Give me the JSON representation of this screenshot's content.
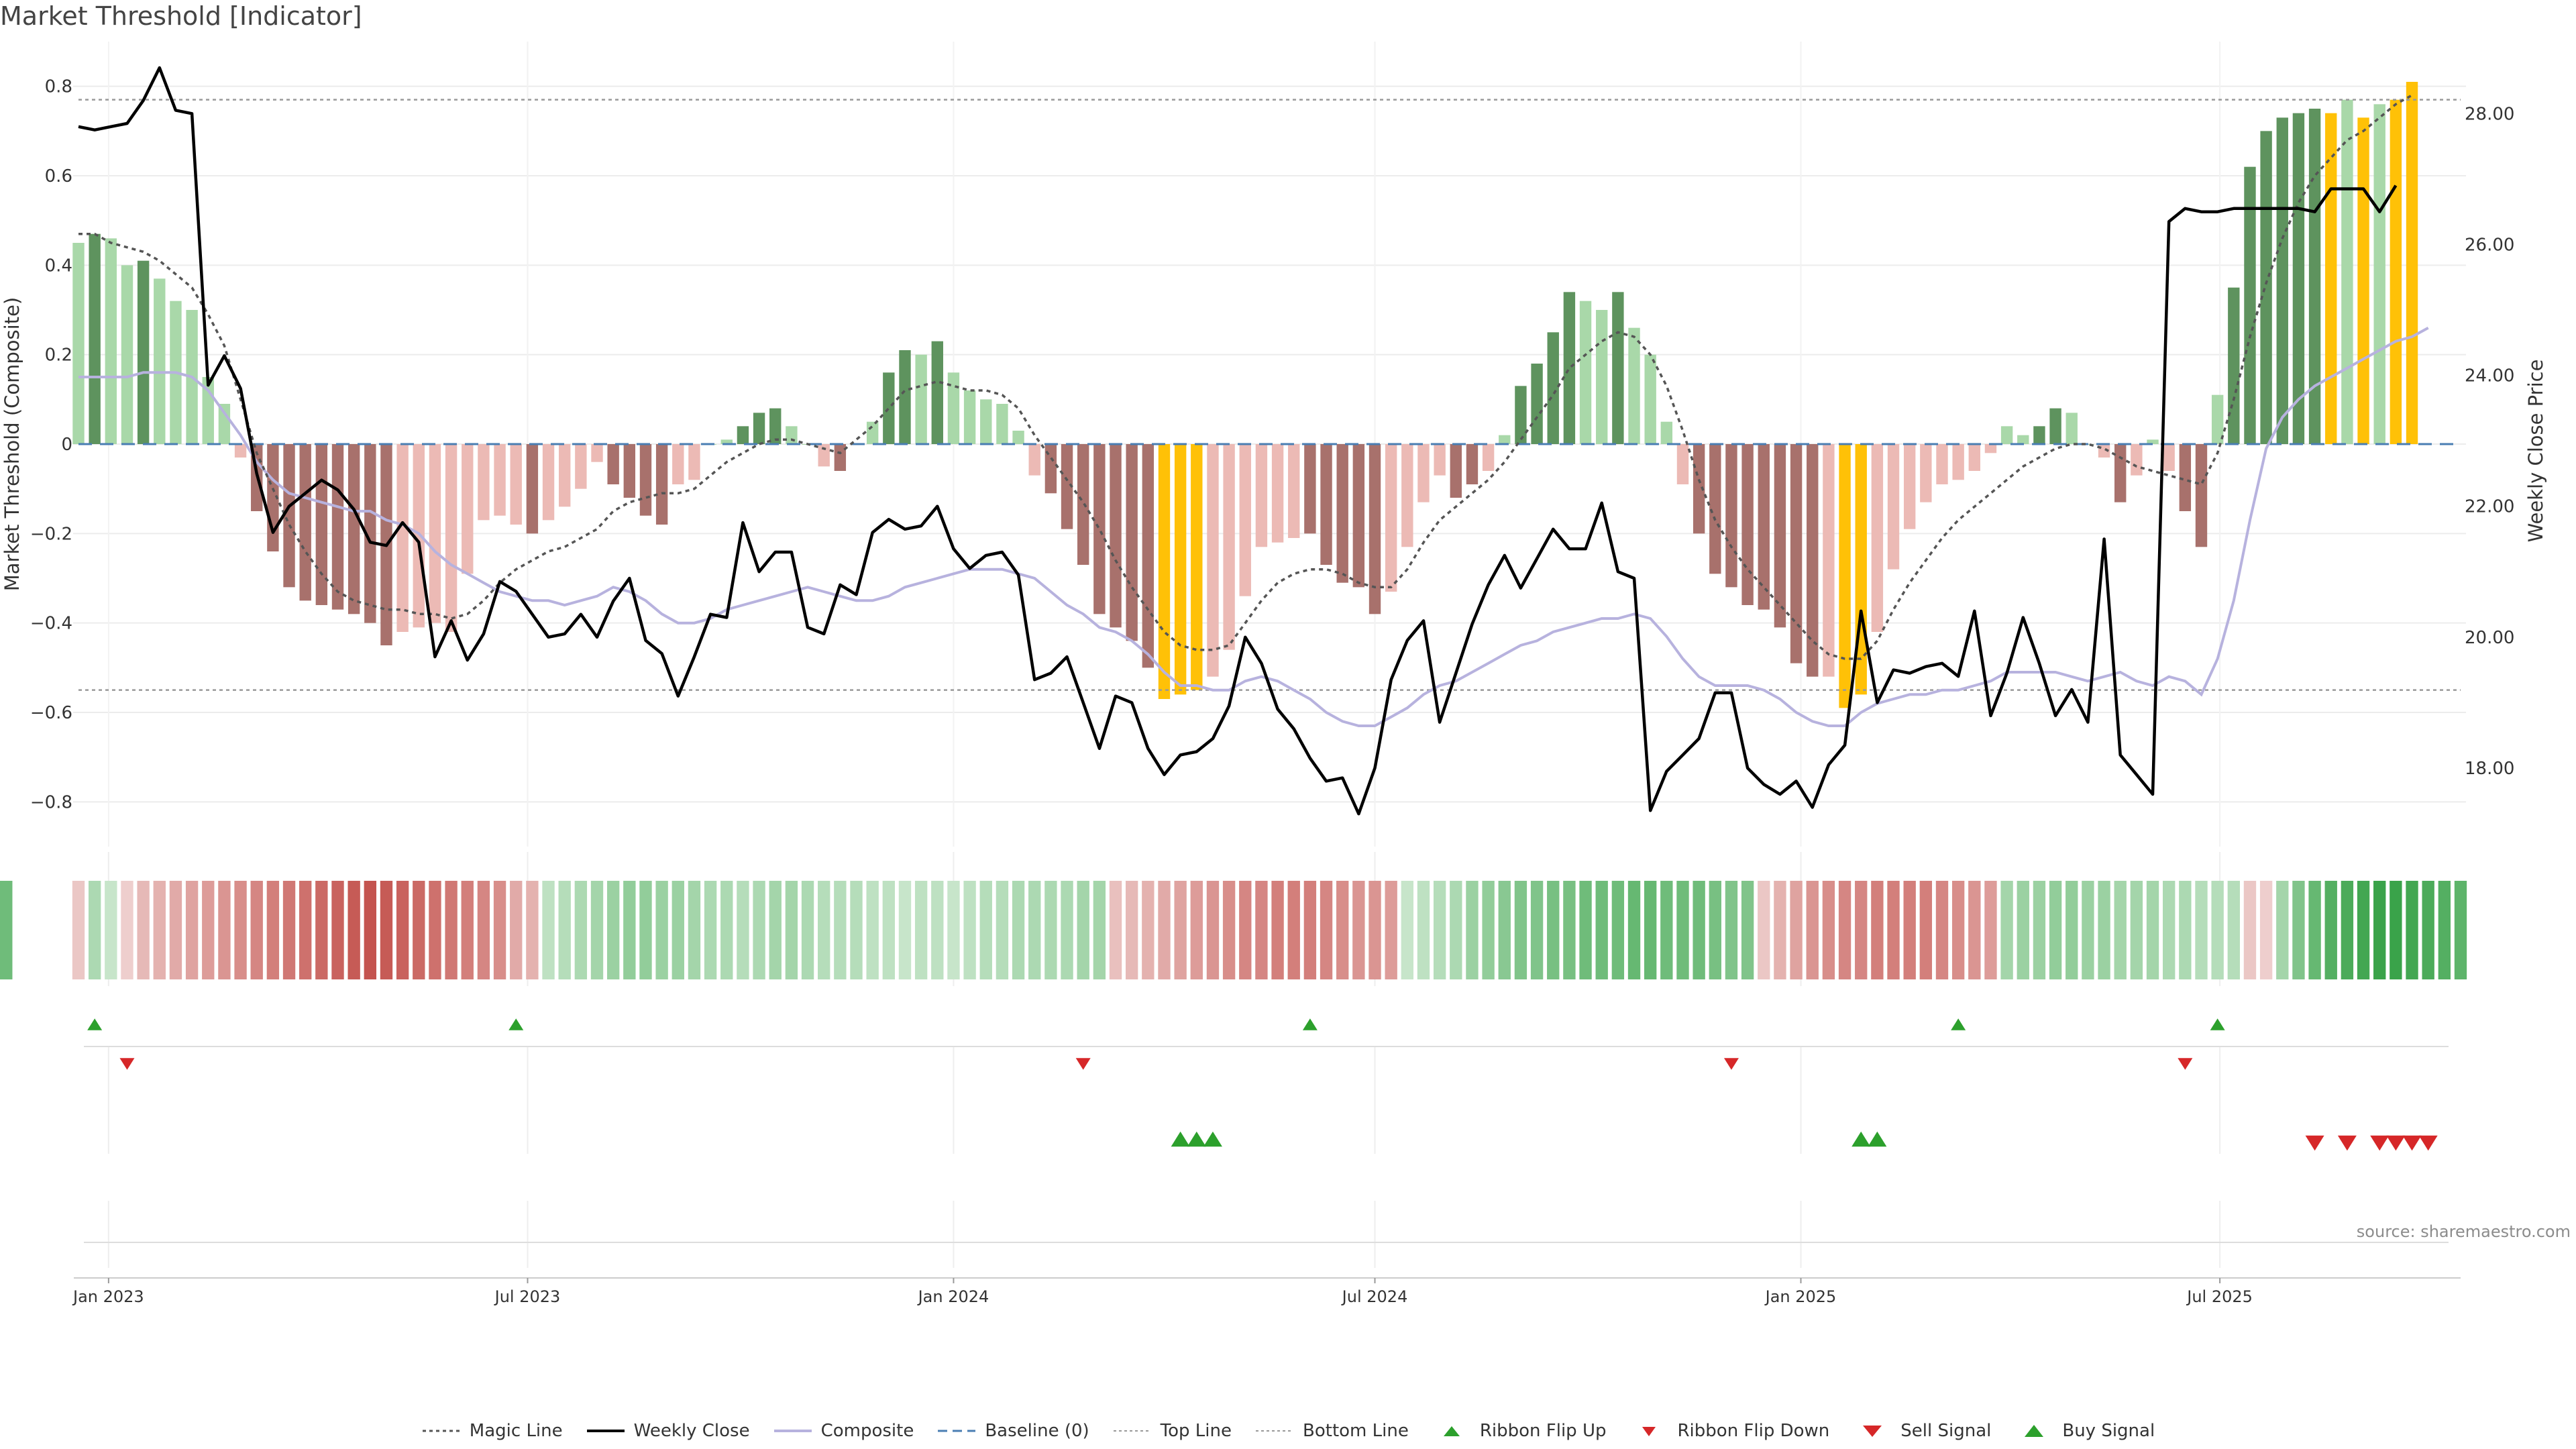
{
  "title": "Market Threshold [Indicator]",
  "source": "source: sharemaestro.com",
  "chart_data": {
    "type": "bar",
    "x_dates": [
      "2022-12-19",
      "2022-12-26",
      "2023-01-02",
      "2023-01-09",
      "2023-01-16",
      "2023-01-23",
      "2023-01-30",
      "2023-02-06",
      "2023-02-13",
      "2023-02-20",
      "2023-02-27",
      "2023-03-06",
      "2023-03-13",
      "2023-03-20",
      "2023-03-27",
      "2023-04-03",
      "2023-04-10",
      "2023-04-17",
      "2023-04-24",
      "2023-05-01",
      "2023-05-08",
      "2023-05-15",
      "2023-05-22",
      "2023-05-29",
      "2023-06-05",
      "2023-06-12",
      "2023-06-19",
      "2023-06-26",
      "2023-07-03",
      "2023-07-10",
      "2023-07-17",
      "2023-07-24",
      "2023-07-31",
      "2023-08-07",
      "2023-08-14",
      "2023-08-21",
      "2023-08-28",
      "2023-09-04",
      "2023-09-11",
      "2023-09-18",
      "2023-09-25",
      "2023-10-02",
      "2023-10-09",
      "2023-10-16",
      "2023-10-23",
      "2023-10-30",
      "2023-11-06",
      "2023-11-13",
      "2023-11-20",
      "2023-11-27",
      "2023-12-04",
      "2023-12-11",
      "2023-12-18",
      "2023-12-25",
      "2024-01-01",
      "2024-01-08",
      "2024-01-15",
      "2024-01-22",
      "2024-01-29",
      "2024-02-05",
      "2024-02-12",
      "2024-02-19",
      "2024-02-26",
      "2024-03-04",
      "2024-03-11",
      "2024-03-18",
      "2024-03-25",
      "2024-04-01",
      "2024-04-08",
      "2024-04-15",
      "2024-04-22",
      "2024-04-29",
      "2024-05-06",
      "2024-05-13",
      "2024-05-20",
      "2024-05-27",
      "2024-06-03",
      "2024-06-10",
      "2024-06-17",
      "2024-06-24",
      "2024-07-01",
      "2024-07-08",
      "2024-07-15",
      "2024-07-22",
      "2024-07-29",
      "2024-08-05",
      "2024-08-12",
      "2024-08-19",
      "2024-08-26",
      "2024-09-02",
      "2024-09-09",
      "2024-09-16",
      "2024-09-23",
      "2024-09-30",
      "2024-10-07",
      "2024-10-14",
      "2024-10-21",
      "2024-10-28",
      "2024-11-04",
      "2024-11-11",
      "2024-11-18",
      "2024-11-25",
      "2024-12-02",
      "2024-12-09",
      "2024-12-16",
      "2024-12-23",
      "2024-12-30",
      "2025-01-06",
      "2025-01-13",
      "2025-01-20",
      "2025-01-27",
      "2025-02-03",
      "2025-02-10",
      "2025-02-17",
      "2025-02-24",
      "2025-03-03",
      "2025-03-10",
      "2025-03-17",
      "2025-03-24",
      "2025-03-31",
      "2025-04-07",
      "2025-04-14",
      "2025-04-21",
      "2025-04-28",
      "2025-05-05",
      "2025-05-12",
      "2025-05-19",
      "2025-05-26",
      "2025-06-02",
      "2025-06-09",
      "2025-06-16",
      "2025-06-23",
      "2025-06-30",
      "2025-07-07",
      "2025-07-14",
      "2025-07-21",
      "2025-07-28",
      "2025-08-04",
      "2025-08-11",
      "2025-08-18",
      "2025-08-25",
      "2025-09-01",
      "2025-09-08",
      "2025-09-15",
      "2025-09-22",
      "2025-09-29",
      "2025-10-06",
      "2025-10-13"
    ],
    "composite_bars": [
      0.45,
      0.47,
      0.46,
      0.4,
      0.41,
      0.37,
      0.32,
      0.3,
      0.15,
      0.09,
      -0.03,
      -0.15,
      -0.24,
      -0.32,
      -0.35,
      -0.36,
      -0.37,
      -0.38,
      -0.4,
      -0.45,
      -0.42,
      -0.41,
      -0.4,
      -0.42,
      -0.29,
      -0.17,
      -0.16,
      -0.18,
      -0.2,
      -0.17,
      -0.14,
      -0.1,
      -0.04,
      -0.09,
      -0.12,
      -0.16,
      -0.18,
      -0.09,
      -0.08,
      0.0,
      0.01,
      0.04,
      0.07,
      0.08,
      0.04,
      0.0,
      -0.05,
      -0.06,
      0.0,
      0.05,
      0.16,
      0.21,
      0.2,
      0.23,
      0.16,
      0.12,
      0.1,
      0.09,
      0.03,
      -0.07,
      -0.11,
      -0.19,
      -0.27,
      -0.38,
      -0.41,
      -0.44,
      -0.5,
      -0.57,
      -0.56,
      -0.55,
      -0.52,
      -0.46,
      -0.34,
      -0.23,
      -0.22,
      -0.21,
      -0.2,
      -0.27,
      -0.31,
      -0.32,
      -0.38,
      -0.33,
      -0.23,
      -0.13,
      -0.07,
      -0.12,
      -0.09,
      -0.06,
      0.02,
      0.13,
      0.18,
      0.25,
      0.34,
      0.32,
      0.3,
      0.34,
      0.26,
      0.2,
      0.05,
      -0.09,
      -0.2,
      -0.29,
      -0.32,
      -0.36,
      -0.37,
      -0.41,
      -0.49,
      -0.52,
      -0.52,
      -0.59,
      -0.56,
      -0.42,
      -0.28,
      -0.19,
      -0.13,
      -0.09,
      -0.08,
      -0.06,
      -0.02,
      0.04,
      0.02,
      0.04,
      0.08,
      0.07,
      0.0,
      -0.03,
      -0.13,
      -0.07,
      0.01,
      -0.06,
      -0.15,
      -0.23,
      0.11,
      0.35,
      0.62,
      0.7,
      0.73,
      0.74,
      0.75,
      0.74,
      0.77,
      0.73,
      0.76,
      0.77,
      0.81
    ],
    "bar_categories": [
      "light-green",
      "dark-green",
      "light-green",
      "light-green",
      "dark-green",
      "light-green",
      "light-green",
      "light-green",
      "light-green",
      "light-green",
      "light-red",
      "dark-red",
      "dark-red",
      "dark-red",
      "dark-red",
      "dark-red",
      "dark-red",
      "dark-red",
      "dark-red",
      "dark-red",
      "light-red",
      "light-red",
      "light-red",
      "light-red",
      "light-red",
      "light-red",
      "light-red",
      "light-red",
      "dark-red",
      "light-red",
      "light-red",
      "light-red",
      "light-red",
      "dark-red",
      "dark-red",
      "dark-red",
      "dark-red",
      "light-red",
      "light-red",
      "light-green",
      "light-green",
      "dark-green",
      "dark-green",
      "dark-green",
      "light-green",
      "light-green",
      "light-red",
      "dark-red",
      "light-green",
      "light-green",
      "dark-green",
      "dark-green",
      "light-green",
      "dark-green",
      "light-green",
      "light-green",
      "light-green",
      "light-green",
      "light-green",
      "light-red",
      "dark-red",
      "dark-red",
      "dark-red",
      "dark-red",
      "dark-red",
      "dark-red",
      "dark-red",
      "extreme",
      "extreme",
      "extreme",
      "light-red",
      "light-red",
      "light-red",
      "light-red",
      "light-red",
      "light-red",
      "dark-red",
      "dark-red",
      "dark-red",
      "dark-red",
      "dark-red",
      "light-red",
      "light-red",
      "light-red",
      "light-red",
      "dark-red",
      "dark-red",
      "light-red",
      "light-green",
      "dark-green",
      "dark-green",
      "dark-green",
      "dark-green",
      "light-green",
      "light-green",
      "dark-green",
      "light-green",
      "light-green",
      "light-green",
      "light-red",
      "dark-red",
      "dark-red",
      "dark-red",
      "dark-red",
      "dark-red",
      "dark-red",
      "dark-red",
      "dark-red",
      "light-red",
      "extreme",
      "extreme",
      "light-red",
      "light-red",
      "light-red",
      "light-red",
      "light-red",
      "light-red",
      "light-red",
      "light-red",
      "light-green",
      "light-green",
      "dark-green",
      "dark-green",
      "light-green",
      "light-green",
      "light-red",
      "dark-red",
      "light-red",
      "light-green",
      "light-red",
      "dark-red",
      "dark-red",
      "light-green",
      "dark-green",
      "dark-green",
      "dark-green",
      "dark-green",
      "dark-green",
      "dark-green",
      "extreme",
      "light-green",
      "extreme",
      "light-green",
      "extreme",
      "extreme"
    ],
    "magic_line": [
      0.47,
      0.47,
      0.45,
      0.44,
      0.43,
      0.41,
      0.38,
      0.35,
      0.29,
      0.22,
      0.1,
      -0.02,
      -0.1,
      -0.18,
      -0.24,
      -0.29,
      -0.33,
      -0.35,
      -0.36,
      -0.37,
      -0.37,
      -0.38,
      -0.38,
      -0.39,
      -0.38,
      -0.35,
      -0.31,
      -0.28,
      -0.26,
      -0.24,
      -0.23,
      -0.21,
      -0.19,
      -0.15,
      -0.13,
      -0.12,
      -0.11,
      -0.11,
      -0.1,
      -0.07,
      -0.04,
      -0.02,
      0.0,
      0.01,
      0.01,
      0.0,
      -0.01,
      -0.02,
      0.01,
      0.04,
      0.08,
      0.12,
      0.13,
      0.14,
      0.13,
      0.12,
      0.12,
      0.11,
      0.08,
      0.02,
      -0.03,
      -0.08,
      -0.13,
      -0.19,
      -0.26,
      -0.32,
      -0.37,
      -0.42,
      -0.45,
      -0.46,
      -0.46,
      -0.45,
      -0.4,
      -0.35,
      -0.31,
      -0.29,
      -0.28,
      -0.28,
      -0.29,
      -0.31,
      -0.32,
      -0.32,
      -0.28,
      -0.22,
      -0.17,
      -0.14,
      -0.11,
      -0.08,
      -0.04,
      0.01,
      0.06,
      0.11,
      0.17,
      0.2,
      0.23,
      0.25,
      0.24,
      0.2,
      0.13,
      0.03,
      -0.08,
      -0.17,
      -0.23,
      -0.28,
      -0.32,
      -0.36,
      -0.4,
      -0.44,
      -0.47,
      -0.48,
      -0.48,
      -0.44,
      -0.37,
      -0.31,
      -0.26,
      -0.21,
      -0.17,
      -0.14,
      -0.11,
      -0.08,
      -0.05,
      -0.03,
      -0.01,
      0.0,
      0.0,
      -0.01,
      -0.03,
      -0.05,
      -0.06,
      -0.07,
      -0.08,
      -0.09,
      -0.02,
      0.1,
      0.24,
      0.36,
      0.46,
      0.54,
      0.6,
      0.64,
      0.68,
      0.7,
      0.73,
      0.76,
      0.78
    ],
    "composite_line": [
      0.15,
      0.15,
      0.15,
      0.15,
      0.16,
      0.16,
      0.16,
      0.15,
      0.12,
      0.07,
      0.02,
      -0.04,
      -0.08,
      -0.11,
      -0.12,
      -0.13,
      -0.14,
      -0.15,
      -0.15,
      -0.17,
      -0.18,
      -0.2,
      -0.24,
      -0.27,
      -0.29,
      -0.31,
      -0.33,
      -0.34,
      -0.35,
      -0.35,
      -0.36,
      -0.35,
      -0.34,
      -0.32,
      -0.33,
      -0.35,
      -0.38,
      -0.4,
      -0.4,
      -0.39,
      -0.37,
      -0.36,
      -0.35,
      -0.34,
      -0.33,
      -0.32,
      -0.33,
      -0.34,
      -0.35,
      -0.35,
      -0.34,
      -0.32,
      -0.31,
      -0.3,
      -0.29,
      -0.28,
      -0.28,
      -0.28,
      -0.29,
      -0.3,
      -0.33,
      -0.36,
      -0.38,
      -0.41,
      -0.42,
      -0.44,
      -0.47,
      -0.51,
      -0.54,
      -0.54,
      -0.55,
      -0.55,
      -0.53,
      -0.52,
      -0.53,
      -0.55,
      -0.57,
      -0.6,
      -0.62,
      -0.63,
      -0.63,
      -0.61,
      -0.59,
      -0.56,
      -0.54,
      -0.53,
      -0.51,
      -0.49,
      -0.47,
      -0.45,
      -0.44,
      -0.42,
      -0.41,
      -0.4,
      -0.39,
      -0.39,
      -0.38,
      -0.39,
      -0.43,
      -0.48,
      -0.52,
      -0.54,
      -0.54,
      -0.54,
      -0.55,
      -0.57,
      -0.6,
      -0.62,
      -0.63,
      -0.63,
      -0.6,
      -0.58,
      -0.57,
      -0.56,
      -0.56,
      -0.55,
      -0.55,
      -0.54,
      -0.53,
      -0.51,
      -0.51,
      -0.51,
      -0.51,
      -0.52,
      -0.53,
      -0.52,
      -0.51,
      -0.53,
      -0.54,
      -0.52,
      -0.53,
      -0.56,
      -0.48,
      -0.35,
      -0.17,
      -0.01,
      0.06,
      0.1,
      0.13,
      0.15,
      0.17,
      0.19,
      0.21,
      0.23,
      0.24,
      0.26
    ],
    "weekly_close": [
      27.8,
      27.75,
      27.8,
      27.85,
      28.2,
      28.7,
      28.05,
      28.0,
      23.85,
      24.3,
      23.8,
      22.5,
      21.6,
      22.0,
      22.2,
      22.4,
      22.25,
      21.95,
      21.45,
      21.4,
      21.75,
      21.45,
      19.7,
      20.25,
      19.65,
      20.05,
      20.85,
      20.7,
      20.35,
      20.0,
      20.05,
      20.35,
      20.0,
      20.55,
      20.9,
      19.95,
      19.75,
      19.1,
      19.7,
      20.35,
      20.3,
      21.75,
      21.0,
      21.3,
      21.3,
      20.15,
      20.05,
      20.8,
      20.65,
      21.6,
      21.8,
      21.65,
      21.7,
      22.0,
      21.35,
      21.05,
      21.25,
      21.3,
      20.95,
      19.35,
      19.45,
      19.7,
      19.0,
      18.3,
      19.1,
      19.0,
      18.3,
      17.9,
      18.2,
      18.25,
      18.45,
      18.95,
      20.0,
      19.6,
      18.9,
      18.6,
      18.15,
      17.8,
      17.85,
      17.3,
      18.0,
      19.35,
      19.95,
      20.25,
      18.7,
      19.45,
      20.2,
      20.8,
      21.25,
      20.75,
      21.2,
      21.65,
      21.35,
      21.35,
      22.05,
      21.0,
      20.9,
      17.35,
      17.95,
      18.2,
      18.45,
      19.15,
      19.15,
      18.0,
      17.75,
      17.6,
      17.8,
      17.4,
      18.05,
      18.35,
      20.4,
      19.0,
      19.5,
      19.45,
      19.55,
      19.6,
      19.4,
      20.4,
      18.8,
      19.45,
      20.3,
      19.6,
      18.8,
      19.2,
      18.7,
      21.5,
      18.2,
      17.9,
      17.6,
      26.35,
      26.55,
      26.5,
      26.5,
      26.55,
      26.55,
      26.55,
      26.55,
      26.55,
      26.5,
      26.85,
      26.85,
      26.85,
      26.5,
      26.9
    ],
    "ribbon_levels": [
      -0.2,
      0.35,
      0.2,
      -0.15,
      -0.3,
      -0.35,
      -0.4,
      -0.45,
      -0.5,
      -0.55,
      -0.6,
      -0.65,
      -0.7,
      -0.75,
      -0.8,
      -0.85,
      -0.9,
      -0.95,
      -1.0,
      -0.95,
      -0.9,
      -0.85,
      -0.8,
      -0.75,
      -0.7,
      -0.65,
      -0.6,
      -0.4,
      -0.35,
      0.25,
      0.3,
      0.35,
      0.4,
      0.45,
      0.5,
      0.5,
      0.45,
      0.45,
      0.4,
      0.35,
      0.35,
      0.3,
      0.35,
      0.4,
      0.4,
      0.35,
      0.3,
      0.3,
      0.3,
      0.25,
      0.25,
      0.2,
      0.25,
      0.25,
      0.2,
      0.25,
      0.3,
      0.3,
      0.35,
      0.35,
      0.35,
      0.35,
      0.4,
      0.4,
      -0.25,
      -0.3,
      -0.35,
      -0.4,
      -0.45,
      -0.5,
      -0.55,
      -0.6,
      -0.65,
      -0.65,
      -0.7,
      -0.7,
      -0.7,
      -0.65,
      -0.6,
      -0.55,
      -0.55,
      -0.5,
      0.2,
      0.25,
      0.3,
      0.35,
      0.45,
      0.5,
      0.55,
      0.6,
      0.6,
      0.65,
      0.65,
      0.7,
      0.7,
      0.7,
      0.75,
      0.75,
      0.7,
      0.7,
      0.7,
      0.65,
      0.6,
      0.6,
      -0.2,
      -0.35,
      -0.45,
      -0.55,
      -0.6,
      -0.65,
      -0.65,
      -0.7,
      -0.7,
      -0.7,
      -0.7,
      -0.65,
      -0.6,
      -0.55,
      -0.5,
      0.4,
      0.45,
      0.45,
      0.5,
      0.5,
      0.45,
      0.45,
      0.4,
      0.4,
      0.4,
      0.35,
      0.35,
      0.3,
      0.3,
      0.3,
      -0.2,
      -0.15,
      0.4,
      0.6,
      0.75,
      0.85,
      0.9,
      0.95,
      1.0,
      1.0,
      0.95,
      0.9,
      0.85,
      0.8,
      0.75,
      0.7
    ],
    "ribbon_flip_up_dates": [
      "2022-12-26",
      "2023-06-26",
      "2024-06-03",
      "2025-03-10",
      "2025-06-30"
    ],
    "ribbon_flip_down_dates": [
      "2023-01-09",
      "2024-02-26",
      "2024-12-02",
      "2025-06-16"
    ],
    "buy_signal_dates": [
      "2024-04-08",
      "2024-04-15",
      "2024-04-22",
      "2025-01-27",
      "2025-02-03"
    ],
    "sell_signal_dates": [
      "2025-08-11",
      "2025-08-25",
      "2025-09-08",
      "2025-09-15",
      "2025-09-22",
      "2025-09-29"
    ],
    "top_line": 0.77,
    "bottom_line": -0.55,
    "baseline": 0,
    "ylim": [
      -0.9,
      0.9
    ],
    "y2lim": [
      16.8,
      29.1
    ],
    "y_ticks": [
      0.8,
      0.6,
      0.4,
      0.2,
      0,
      -0.2,
      -0.4,
      -0.6,
      -0.8
    ],
    "y2_ticks": [
      28.0,
      26.0,
      24.0,
      22.0,
      20.0,
      18.0
    ],
    "y_tick_labels": [
      "0.8",
      "0.6",
      "0.4",
      "0.2",
      "0",
      "−0.2",
      "−0.4",
      "−0.6",
      "−0.8"
    ],
    "y2_tick_labels": [
      "28.00",
      "26.00",
      "24.00",
      "22.00",
      "20.00",
      "18.00"
    ],
    "x_ticks": [
      {
        "date": "2023-01-01",
        "label": "Jan 2023"
      },
      {
        "date": "2023-07-01",
        "label": "Jul 2023"
      },
      {
        "date": "2024-01-01",
        "label": "Jan 2024"
      },
      {
        "date": "2024-07-01",
        "label": "Jul 2024"
      },
      {
        "date": "2025-01-01",
        "label": "Jan 2025"
      },
      {
        "date": "2025-07-01",
        "label": "Jul 2025"
      }
    ],
    "ylabel": "Market Threshold (Composite)",
    "y2label": "Weekly Close Price",
    "grid": true,
    "legend_position": "bottom-center",
    "colors": {
      "light-green": "#a9d8a9",
      "dark-green": "#5e935e",
      "light-red": "#ecbab5",
      "dark-red": "#a8716c",
      "extreme": "#ffc107",
      "weekly_close": "#000000",
      "composite": "#b7b2de",
      "magic": "#555555",
      "baseline": "#4a7eb3",
      "buy": "#2ca02c",
      "ribbon_up": "#2ca02c",
      "down": "#d62728"
    }
  },
  "legend": [
    {
      "label": "Magic Line",
      "icon": "dotted-line"
    },
    {
      "label": "Weekly Close",
      "icon": "solid-line"
    },
    {
      "label": "Composite",
      "icon": "purple-line"
    },
    {
      "label": "Baseline (0)",
      "icon": "dashed-line"
    },
    {
      "label": "Top Line",
      "icon": "thin-dotted-line"
    },
    {
      "label": "Bottom Line",
      "icon": "thin-dotted-line"
    },
    {
      "label": "Ribbon Flip Up",
      "icon": "green-triangle-up"
    },
    {
      "label": "Ribbon Flip Down",
      "icon": "red-triangle-down"
    },
    {
      "label": "Sell Signal",
      "icon": "red-triangle-down-large"
    },
    {
      "label": "Buy Signal",
      "icon": "green-triangle-up-large"
    }
  ]
}
